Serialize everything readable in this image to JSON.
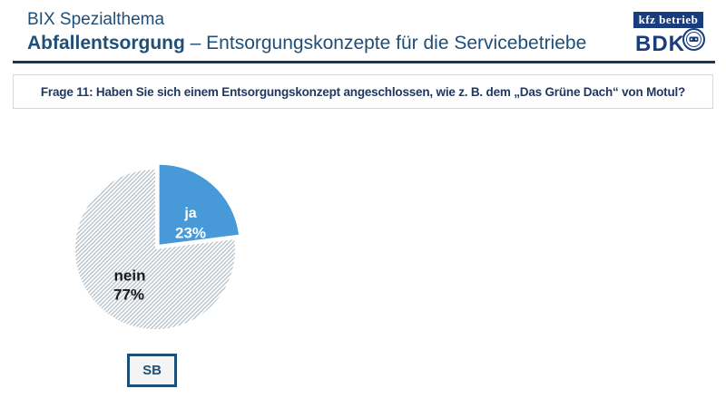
{
  "header": {
    "kicker": "BIX Spezialthema",
    "title_bold": "Abfallentsorgung",
    "title_rest": " – Entsorgungskonzepte für die Servicebetriebe",
    "logos": {
      "kfz_betrieb_label": "kfz betrieb",
      "bdk_label": "BDK",
      "bdk_emblem": "car-seal-icon"
    }
  },
  "question": "Frage 11: Haben Sie sich einem Entsorgungskonzept angeschlossen, wie z. B. dem „Das Grüne Dach“ von Motul?",
  "chart_data": {
    "type": "pie",
    "title": "",
    "start_angle_deg": 0,
    "direction": "clockwise",
    "categories": [
      "ja",
      "nein"
    ],
    "values": [
      23,
      77
    ],
    "slices": [
      {
        "label": "ja",
        "pct_label": "23%",
        "value": 23,
        "color": "#4799D8",
        "text_color": "#ffffff",
        "exploded": true
      },
      {
        "label": "nein",
        "pct_label": "77%",
        "value": 77,
        "color": "hatch",
        "text_color": "#1A1A1A",
        "exploded": false
      }
    ],
    "hatch_line_color": "#B3C0CB",
    "legend_position": "none"
  },
  "footer": {
    "badge": "SB"
  },
  "colors": {
    "header_text": "#1F4E79",
    "rule": "#17375E",
    "question_text": "#1F3864",
    "logo_navy": "#1B3C7C",
    "pie_blue": "#4799D8",
    "background": "#ffffff"
  }
}
